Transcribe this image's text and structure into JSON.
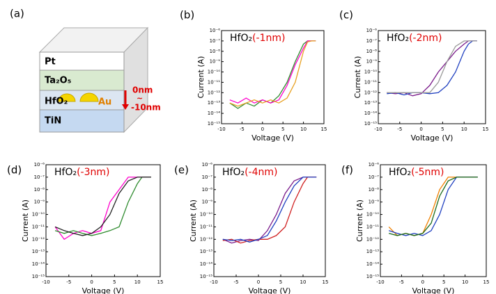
{
  "diagram": {
    "panel_label": "(a)",
    "layers": [
      "Pt",
      "Ta₂O₅",
      "HfO₂",
      "TiN"
    ],
    "particle": "Au",
    "depth_top": "0nm",
    "depth_sep": "~",
    "depth_bottom": "-10nm"
  },
  "chart_data": [
    {
      "type": "line",
      "panel_label": "(b)",
      "title": "HfO₂",
      "title_note": "(-1nm)",
      "xlabel": "Voltage (V)",
      "ylabel": "Current (A)",
      "log_scale": true,
      "xlim": [
        -10,
        15
      ],
      "xticks": [
        -10,
        -5,
        0,
        5,
        10,
        15
      ],
      "ylim": [
        1e-15,
        1e-06
      ],
      "yticks": [
        {
          "value": 1e-15,
          "label": "10⁻¹⁵"
        },
        {
          "value": 1e-14,
          "label": "10⁻¹⁴"
        },
        {
          "value": 1e-13,
          "label": "10⁻¹³"
        },
        {
          "value": 1e-12,
          "label": "10⁻¹²"
        },
        {
          "value": 1e-11,
          "label": "10⁻¹¹"
        },
        {
          "value": 1e-10,
          "label": "10⁻¹⁰"
        },
        {
          "value": 1e-09,
          "label": "10⁻⁹"
        },
        {
          "value": 1e-08,
          "label": "10⁻⁸"
        },
        {
          "value": 1e-07,
          "label": "10⁻⁷"
        },
        {
          "value": 1e-06,
          "label": "10⁻⁶"
        }
      ],
      "x": [
        -8,
        -6,
        -4,
        -2,
        0,
        2,
        4,
        6,
        8,
        10,
        11,
        12,
        13
      ],
      "series": [
        {
          "color": "#2e8b2e",
          "values": [
            1e-13,
            3e-14,
            1e-13,
            5e-14,
            2e-13,
            1e-13,
            5e-13,
            1e-11,
            1e-09,
            5e-08,
            1e-07,
            1e-07,
            1e-07
          ]
        },
        {
          "color": "#ff00cc",
          "values": [
            2e-13,
            1e-13,
            3e-13,
            1e-13,
            2e-13,
            1e-13,
            2e-13,
            5e-12,
            5e-10,
            2e-08,
            1e-07,
            1e-07,
            1e-07
          ]
        },
        {
          "color": "#e8a020",
          "values": [
            1e-13,
            5e-14,
            1e-13,
            2e-13,
            1e-13,
            2e-13,
            1e-13,
            3e-13,
            1e-11,
            1e-08,
            8e-08,
            1e-07,
            1e-07
          ]
        }
      ]
    },
    {
      "type": "line",
      "panel_label": "(c)",
      "title": "HfO₂",
      "title_note": "(-2nm)",
      "xlabel": "Voltage (V)",
      "ylabel": "Current (A)",
      "log_scale": true,
      "xlim": [
        -10,
        15
      ],
      "xticks": [
        -10,
        -5,
        0,
        5,
        10,
        15
      ],
      "ylim": [
        1e-15,
        1e-06
      ],
      "yticks": [
        {
          "value": 1e-15,
          "label": "10⁻¹⁵"
        },
        {
          "value": 1e-14,
          "label": "10⁻¹⁴"
        },
        {
          "value": 1e-13,
          "label": "10⁻¹³"
        },
        {
          "value": 1e-12,
          "label": "10⁻¹²"
        },
        {
          "value": 1e-11,
          "label": "10⁻¹¹"
        },
        {
          "value": 1e-10,
          "label": "10⁻¹⁰"
        },
        {
          "value": 1e-09,
          "label": "10⁻⁹"
        },
        {
          "value": 1e-08,
          "label": "10⁻⁸"
        },
        {
          "value": 1e-07,
          "label": "10⁻⁷"
        },
        {
          "value": 1e-06,
          "label": "10⁻⁶"
        }
      ],
      "x": [
        -8,
        -6,
        -4,
        -2,
        0,
        2,
        4,
        6,
        8,
        10,
        11,
        12,
        13
      ],
      "series": [
        {
          "color": "#7a1a8a",
          "values": [
            1e-12,
            8e-13,
            1e-12,
            5e-13,
            8e-13,
            5e-12,
            1e-10,
            1e-09,
            1e-08,
            5e-08,
            1e-07,
            1e-07,
            1e-07
          ]
        },
        {
          "color": "#2040c0",
          "values": [
            8e-13,
            1e-12,
            6e-13,
            1e-12,
            1e-12,
            8e-13,
            1e-12,
            5e-12,
            1e-10,
            1e-08,
            5e-08,
            1e-07,
            1e-07
          ]
        },
        {
          "color": "#999999",
          "values": [
            1e-12,
            1e-12,
            1e-12,
            1e-12,
            1e-12,
            1e-12,
            1e-11,
            1e-09,
            3e-08,
            1e-07,
            1e-07,
            1e-07,
            1e-07
          ]
        }
      ]
    },
    {
      "type": "line",
      "panel_label": "(d)",
      "title": "HfO₂",
      "title_note": "(-3nm)",
      "xlabel": "Voltage (V)",
      "ylabel": "Current (A)",
      "log_scale": true,
      "xlim": [
        -10,
        15
      ],
      "xticks": [
        -10,
        -5,
        0,
        5,
        10,
        15
      ],
      "ylim": [
        1e-15,
        1e-06
      ],
      "yticks": [
        {
          "value": 1e-15,
          "label": "10⁻¹⁵"
        },
        {
          "value": 1e-14,
          "label": "10⁻¹⁴"
        },
        {
          "value": 1e-13,
          "label": "10⁻¹³"
        },
        {
          "value": 1e-12,
          "label": "10⁻¹²"
        },
        {
          "value": 1e-11,
          "label": "10⁻¹¹"
        },
        {
          "value": 1e-10,
          "label": "10⁻¹⁰"
        },
        {
          "value": 1e-09,
          "label": "10⁻⁹"
        },
        {
          "value": 1e-08,
          "label": "10⁻⁸"
        },
        {
          "value": 1e-07,
          "label": "10⁻⁷"
        },
        {
          "value": 1e-06,
          "label": "10⁻⁶"
        }
      ],
      "x": [
        -8,
        -6,
        -4,
        -2,
        0,
        2,
        4,
        6,
        8,
        10,
        11,
        12,
        13
      ],
      "series": [
        {
          "color": "#ff00cc",
          "values": [
            1e-11,
            1e-12,
            3e-12,
            5e-12,
            3e-12,
            5e-12,
            1e-09,
            1e-08,
            1e-07,
            1e-07,
            1e-07,
            1e-07,
            1e-07
          ]
        },
        {
          "color": "#2e8b2e",
          "values": [
            5e-12,
            3e-12,
            5e-12,
            3e-12,
            2e-12,
            3e-12,
            5e-12,
            1e-11,
            1e-09,
            3e-08,
            1e-07,
            1e-07,
            1e-07
          ]
        },
        {
          "color": "#222222",
          "values": [
            1e-11,
            5e-12,
            3e-12,
            2e-12,
            3e-12,
            1e-11,
            1e-10,
            5e-09,
            5e-08,
            1e-07,
            1e-07,
            1e-07,
            1e-07
          ]
        }
      ]
    },
    {
      "type": "line",
      "panel_label": "(e)",
      "title": "HfO₂",
      "title_note": "(-4nm)",
      "xlabel": "Voltage (V)",
      "ylabel": "Current (A)",
      "log_scale": true,
      "xlim": [
        -10,
        15
      ],
      "xticks": [
        -10,
        -5,
        0,
        5,
        10,
        15
      ],
      "ylim": [
        1e-15,
        1e-06
      ],
      "yticks": [
        {
          "value": 1e-15,
          "label": "10⁻¹⁵"
        },
        {
          "value": 1e-14,
          "label": "10⁻¹⁴"
        },
        {
          "value": 1e-13,
          "label": "10⁻¹³"
        },
        {
          "value": 1e-12,
          "label": "10⁻¹²"
        },
        {
          "value": 1e-11,
          "label": "10⁻¹¹"
        },
        {
          "value": 1e-10,
          "label": "10⁻¹⁰"
        },
        {
          "value": 1e-09,
          "label": "10⁻⁹"
        },
        {
          "value": 1e-08,
          "label": "10⁻⁸"
        },
        {
          "value": 1e-07,
          "label": "10⁻⁷"
        },
        {
          "value": 1e-06,
          "label": "10⁻⁶"
        }
      ],
      "x": [
        -8,
        -6,
        -4,
        -2,
        0,
        2,
        4,
        6,
        8,
        10,
        11,
        12,
        13
      ],
      "series": [
        {
          "color": "#7a1a8a",
          "values": [
            1e-12,
            5e-13,
            8e-13,
            1e-12,
            8e-13,
            5e-12,
            1e-10,
            5e-09,
            5e-08,
            1e-07,
            1e-07,
            1e-07,
            1e-07
          ]
        },
        {
          "color": "#d02020",
          "values": [
            8e-13,
            1e-12,
            5e-13,
            8e-13,
            1e-12,
            1e-12,
            2e-12,
            1e-11,
            1e-09,
            3e-08,
            1e-07,
            1e-07,
            1e-07
          ]
        },
        {
          "color": "#2040c0",
          "values": [
            1e-12,
            8e-13,
            1e-12,
            6e-13,
            1e-12,
            2e-12,
            3e-11,
            1e-09,
            2e-08,
            1e-07,
            1e-07,
            1e-07,
            1e-07
          ]
        }
      ]
    },
    {
      "type": "line",
      "panel_label": "(f)",
      "title": "HfO₂",
      "title_note": "(-5nm)",
      "xlabel": "Voltage (V)",
      "ylabel": "Current (A)",
      "log_scale": true,
      "xlim": [
        -10,
        15
      ],
      "xticks": [
        -10,
        -5,
        0,
        5,
        10,
        15
      ],
      "ylim": [
        1e-15,
        1e-06
      ],
      "yticks": [
        {
          "value": 1e-15,
          "label": "10⁻¹⁵"
        },
        {
          "value": 1e-14,
          "label": "10⁻¹⁴"
        },
        {
          "value": 1e-13,
          "label": "10⁻¹³"
        },
        {
          "value": 1e-12,
          "label": "10⁻¹²"
        },
        {
          "value": 1e-11,
          "label": "10⁻¹¹"
        },
        {
          "value": 1e-10,
          "label": "10⁻¹⁰"
        },
        {
          "value": 1e-09,
          "label": "10⁻⁹"
        },
        {
          "value": 1e-08,
          "label": "10⁻⁸"
        },
        {
          "value": 1e-07,
          "label": "10⁻⁷"
        },
        {
          "value": 1e-06,
          "label": "10⁻⁶"
        }
      ],
      "x": [
        -8,
        -6,
        -4,
        -2,
        0,
        2,
        4,
        6,
        8,
        10,
        11,
        12,
        13
      ],
      "series": [
        {
          "color": "#f08000",
          "values": [
            1e-11,
            2e-12,
            3e-12,
            2e-12,
            3e-12,
            1e-10,
            1e-08,
            1e-07,
            1e-07,
            1e-07,
            1e-07,
            1e-07,
            1e-07
          ]
        },
        {
          "color": "#2040c0",
          "values": [
            5e-12,
            3e-12,
            2e-12,
            3e-12,
            2e-12,
            5e-12,
            1e-10,
            1e-08,
            1e-07,
            1e-07,
            1e-07,
            1e-07,
            1e-07
          ]
        },
        {
          "color": "#1a6a1a",
          "values": [
            3e-12,
            2e-12,
            3e-12,
            2e-12,
            3e-12,
            2e-11,
            3e-09,
            5e-08,
            1e-07,
            1e-07,
            1e-07,
            1e-07,
            1e-07
          ]
        }
      ]
    }
  ]
}
